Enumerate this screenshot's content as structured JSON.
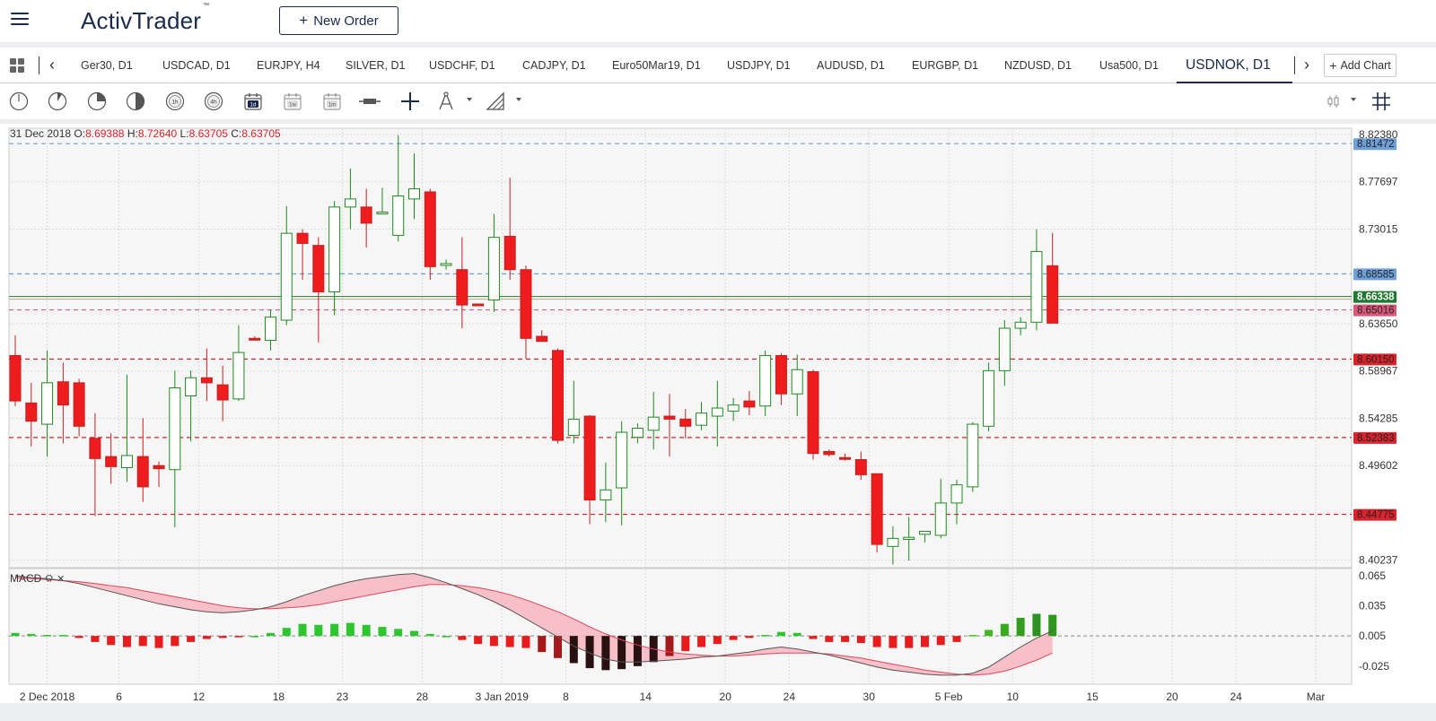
{
  "header": {
    "logo": "ActivTrader",
    "logo_tm": "™",
    "new_order_label": "New Order"
  },
  "tabs": [
    "Ger30, D1",
    "USDCAD, D1",
    "EURJPY, H4",
    "SILVER, D1",
    "USDCHF, D1",
    "CADJPY, D1",
    "Euro50Mar19, D1",
    "USDJPY, D1",
    "AUDUSD, D1",
    "EURGBP, D1",
    "NZDUSD, D1",
    "Usa500, D1",
    "USDNOK, D1"
  ],
  "active_tab": "USDNOK, D1",
  "add_chart_label": "Add Chart",
  "toolbar": {
    "tools": [
      "clock-1-icon",
      "clock-2-icon",
      "clock-3-icon",
      "clock-4-icon",
      "timeframe-1h-icon",
      "timeframe-4h-icon",
      "timeframe-1d-icon",
      "timeframe-1w-icon",
      "timeframe-1m-icon",
      "line-tool-icon",
      "crosshair-icon",
      "drawing-tool-icon",
      "shape-tool-icon",
      "chart-type-icon",
      "grid-icon"
    ],
    "tf_1h": "1h",
    "tf_4h": "4h",
    "tf_1d": "1d",
    "tf_1w": "1w",
    "tf_1m": "1m"
  },
  "ohlc": {
    "date": "31 Dec 2018",
    "o_label": "O:",
    "o": "8.69388",
    "h_label": "H:",
    "h": "8.72640",
    "l_label": "L:",
    "l": "8.63705",
    "c_label": "C:",
    "c": "8.63705"
  },
  "macd_label": "MACD",
  "chart_data": {
    "type": "candlestick",
    "symbol": "USDNOK",
    "timeframe": "D1",
    "price_axis_labels": [
      "8.82380",
      "8.77697",
      "8.73015",
      "8.63650",
      "8.58967",
      "8.54285",
      "8.49602",
      "8.40237"
    ],
    "ylim": [
      8.395,
      8.83
    ],
    "x_tick_labels": [
      {
        "label": "2 Dec 2018",
        "index": 2
      },
      {
        "label": "6",
        "index": 6.5
      },
      {
        "label": "12",
        "index": 11.5
      },
      {
        "label": "18",
        "index": 16.5
      },
      {
        "label": "23",
        "index": 20.5
      },
      {
        "label": "28",
        "index": 25.5
      },
      {
        "label": "3 Jan 2019",
        "index": 30.5
      },
      {
        "label": "8",
        "index": 34.5
      },
      {
        "label": "14",
        "index": 39.5
      },
      {
        "label": "20",
        "index": 44.5
      },
      {
        "label": "24",
        "index": 48.5
      },
      {
        "label": "30",
        "index": 53.5
      },
      {
        "label": "5 Feb",
        "index": 58.5
      },
      {
        "label": "10",
        "index": 62.5
      },
      {
        "label": "15",
        "index": 67.5
      },
      {
        "label": "20",
        "index": 72.5
      },
      {
        "label": "24",
        "index": 76.5
      },
      {
        "label": "Mar",
        "index": 81.5
      }
    ],
    "candles": [
      {
        "o": 8.605,
        "h": 8.625,
        "l": 8.555,
        "c": 8.56
      },
      {
        "o": 8.558,
        "h": 8.578,
        "l": 8.515,
        "c": 8.54
      },
      {
        "o": 8.537,
        "h": 8.61,
        "l": 8.505,
        "c": 8.578
      },
      {
        "o": 8.579,
        "h": 8.598,
        "l": 8.518,
        "c": 8.556
      },
      {
        "o": 8.578,
        "h": 8.582,
        "l": 8.525,
        "c": 8.535
      },
      {
        "o": 8.523,
        "h": 8.548,
        "l": 8.446,
        "c": 8.503
      },
      {
        "o": 8.505,
        "h": 8.528,
        "l": 8.478,
        "c": 8.495
      },
      {
        "o": 8.494,
        "h": 8.586,
        "l": 8.48,
        "c": 8.506
      },
      {
        "o": 8.505,
        "h": 8.543,
        "l": 8.46,
        "c": 8.475
      },
      {
        "o": 8.496,
        "h": 8.5,
        "l": 8.475,
        "c": 8.493
      },
      {
        "o": 8.492,
        "h": 8.59,
        "l": 8.435,
        "c": 8.573
      },
      {
        "o": 8.565,
        "h": 8.59,
        "l": 8.52,
        "c": 8.583
      },
      {
        "o": 8.583,
        "h": 8.612,
        "l": 8.56,
        "c": 8.578
      },
      {
        "o": 8.576,
        "h": 8.595,
        "l": 8.54,
        "c": 8.561
      },
      {
        "o": 8.562,
        "h": 8.635,
        "l": 8.56,
        "c": 8.608
      },
      {
        "o": 8.622,
        "h": 8.624,
        "l": 8.62,
        "c": 8.621
      },
      {
        "o": 8.62,
        "h": 8.65,
        "l": 8.61,
        "c": 8.643
      },
      {
        "o": 8.64,
        "h": 8.753,
        "l": 8.635,
        "c": 8.726
      },
      {
        "o": 8.726,
        "h": 8.73,
        "l": 8.68,
        "c": 8.716
      },
      {
        "o": 8.714,
        "h": 8.722,
        "l": 8.618,
        "c": 8.668
      },
      {
        "o": 8.668,
        "h": 8.758,
        "l": 8.645,
        "c": 8.752
      },
      {
        "o": 8.752,
        "h": 8.79,
        "l": 8.73,
        "c": 8.76
      },
      {
        "o": 8.752,
        "h": 8.77,
        "l": 8.712,
        "c": 8.736
      },
      {
        "o": 8.747,
        "h": 8.771,
        "l": 8.745,
        "c": 8.747
      },
      {
        "o": 8.724,
        "h": 8.823,
        "l": 8.718,
        "c": 8.763
      },
      {
        "o": 8.76,
        "h": 8.805,
        "l": 8.74,
        "c": 8.77
      },
      {
        "o": 8.767,
        "h": 8.77,
        "l": 8.68,
        "c": 8.693
      },
      {
        "o": 8.695,
        "h": 8.7,
        "l": 8.69,
        "c": 8.696
      },
      {
        "o": 8.69,
        "h": 8.722,
        "l": 8.632,
        "c": 8.655
      },
      {
        "o": 8.656,
        "h": 8.656,
        "l": 8.654,
        "c": 8.655
      },
      {
        "o": 8.66,
        "h": 8.745,
        "l": 8.648,
        "c": 8.722
      },
      {
        "o": 8.723,
        "h": 8.781,
        "l": 8.68,
        "c": 8.69
      },
      {
        "o": 8.69,
        "h": 8.694,
        "l": 8.602,
        "c": 8.622
      },
      {
        "o": 8.624,
        "h": 8.63,
        "l": 8.619,
        "c": 8.619
      },
      {
        "o": 8.61,
        "h": 8.612,
        "l": 8.518,
        "c": 8.521
      },
      {
        "o": 8.526,
        "h": 8.58,
        "l": 8.518,
        "c": 8.542
      },
      {
        "o": 8.545,
        "h": 8.546,
        "l": 8.438,
        "c": 8.462
      },
      {
        "o": 8.462,
        "h": 8.499,
        "l": 8.44,
        "c": 8.472
      },
      {
        "o": 8.474,
        "h": 8.54,
        "l": 8.437,
        "c": 8.529
      },
      {
        "o": 8.524,
        "h": 8.538,
        "l": 8.518,
        "c": 8.533
      },
      {
        "o": 8.531,
        "h": 8.569,
        "l": 8.512,
        "c": 8.544
      },
      {
        "o": 8.545,
        "h": 8.567,
        "l": 8.505,
        "c": 8.542
      },
      {
        "o": 8.542,
        "h": 8.552,
        "l": 8.523,
        "c": 8.535
      },
      {
        "o": 8.536,
        "h": 8.559,
        "l": 8.531,
        "c": 8.548
      },
      {
        "o": 8.545,
        "h": 8.58,
        "l": 8.515,
        "c": 8.553
      },
      {
        "o": 8.55,
        "h": 8.563,
        "l": 8.54,
        "c": 8.556
      },
      {
        "o": 8.56,
        "h": 8.57,
        "l": 8.546,
        "c": 8.554
      },
      {
        "o": 8.555,
        "h": 8.61,
        "l": 8.545,
        "c": 8.605
      },
      {
        "o": 8.605,
        "h": 8.607,
        "l": 8.556,
        "c": 8.567
      },
      {
        "o": 8.567,
        "h": 8.606,
        "l": 8.545,
        "c": 8.591
      },
      {
        "o": 8.589,
        "h": 8.591,
        "l": 8.502,
        "c": 8.508
      },
      {
        "o": 8.51,
        "h": 8.512,
        "l": 8.505,
        "c": 8.507
      },
      {
        "o": 8.504,
        "h": 8.508,
        "l": 8.501,
        "c": 8.503
      },
      {
        "o": 8.502,
        "h": 8.51,
        "l": 8.482,
        "c": 8.487
      },
      {
        "o": 8.488,
        "h": 8.488,
        "l": 8.41,
        "c": 8.418
      },
      {
        "o": 8.416,
        "h": 8.436,
        "l": 8.398,
        "c": 8.424
      },
      {
        "o": 8.423,
        "h": 8.445,
        "l": 8.402,
        "c": 8.425
      },
      {
        "o": 8.428,
        "h": 8.43,
        "l": 8.42,
        "c": 8.431
      },
      {
        "o": 8.427,
        "h": 8.483,
        "l": 8.424,
        "c": 8.459
      },
      {
        "o": 8.459,
        "h": 8.482,
        "l": 8.438,
        "c": 8.477
      },
      {
        "o": 8.475,
        "h": 8.539,
        "l": 8.47,
        "c": 8.537
      },
      {
        "o": 8.535,
        "h": 8.598,
        "l": 8.53,
        "c": 8.59
      },
      {
        "o": 8.59,
        "h": 8.64,
        "l": 8.575,
        "c": 8.632
      },
      {
        "o": 8.632,
        "h": 8.643,
        "l": 8.625,
        "c": 8.638
      },
      {
        "o": 8.638,
        "h": 8.73,
        "l": 8.63,
        "c": 8.708
      },
      {
        "o": 8.69388,
        "h": 8.7264,
        "l": 8.63705,
        "c": 8.63705
      }
    ],
    "horizontal_lines": [
      {
        "price": 8.81472,
        "label": "8.81472",
        "color": "#6f9fd8",
        "style": "dashed"
      },
      {
        "price": 8.68585,
        "label": "8.68585",
        "color": "#6f9fd8",
        "style": "dashed"
      },
      {
        "price": 8.66338,
        "label": "8.66338",
        "color": "#1f7a2f",
        "style": "solid"
      },
      {
        "price": 8.65016,
        "label": "8.65016",
        "color": "#d8587a",
        "style": "dashed"
      },
      {
        "price": 8.6015,
        "label": "8.60150",
        "color": "#d9232d",
        "style": "dashed"
      },
      {
        "price": 8.52383,
        "label": "8.52383",
        "color": "#d9232d",
        "style": "dashed"
      },
      {
        "price": 8.44775,
        "label": "8.44775",
        "color": "#d9232d",
        "style": "dashed"
      }
    ],
    "macd": {
      "axis_labels": [
        "0.065",
        "0.035",
        "0.005",
        "-0.025"
      ],
      "ylim": [
        -0.043,
        0.072
      ],
      "histogram": [
        0.003,
        0.002,
        0.001,
        0.001,
        -0.002,
        -0.006,
        -0.009,
        -0.011,
        -0.01,
        -0.012,
        -0.01,
        -0.006,
        -0.003,
        -0.002,
        -0.001,
        0.0,
        0.003,
        0.008,
        0.012,
        0.011,
        0.012,
        0.013,
        0.011,
        0.009,
        0.007,
        0.005,
        0.002,
        0.0,
        -0.004,
        -0.008,
        -0.01,
        -0.011,
        -0.012,
        -0.016,
        -0.022,
        -0.027,
        -0.032,
        -0.034,
        -0.033,
        -0.03,
        -0.026,
        -0.02,
        -0.015,
        -0.011,
        -0.008,
        -0.004,
        -0.002,
        0.001,
        0.004,
        0.003,
        -0.003,
        -0.006,
        -0.006,
        -0.007,
        -0.011,
        -0.012,
        -0.012,
        -0.011,
        -0.009,
        -0.006,
        0.001,
        0.006,
        0.012,
        0.018,
        0.022,
        0.021
      ],
      "macd_line": [
        0.065,
        0.063,
        0.062,
        0.06,
        0.057,
        0.053,
        0.049,
        0.045,
        0.041,
        0.037,
        0.034,
        0.031,
        0.029,
        0.028,
        0.029,
        0.031,
        0.034,
        0.039,
        0.045,
        0.05,
        0.055,
        0.059,
        0.062,
        0.064,
        0.066,
        0.067,
        0.063,
        0.058,
        0.052,
        0.046,
        0.039,
        0.031,
        0.022,
        0.013,
        0.004,
        -0.005,
        -0.012,
        -0.018,
        -0.021,
        -0.021,
        -0.02,
        -0.019,
        -0.018,
        -0.016,
        -0.015,
        -0.013,
        -0.011,
        -0.008,
        -0.006,
        -0.008,
        -0.011,
        -0.014,
        -0.018,
        -0.022,
        -0.026,
        -0.029,
        -0.031,
        -0.033,
        -0.034,
        -0.034,
        -0.032,
        -0.026,
        -0.016,
        -0.006,
        0.003,
        0.01
      ],
      "signal_line": [
        0.063,
        0.062,
        0.061,
        0.06,
        0.059,
        0.057,
        0.055,
        0.053,
        0.05,
        0.047,
        0.044,
        0.041,
        0.038,
        0.035,
        0.033,
        0.032,
        0.032,
        0.033,
        0.034,
        0.036,
        0.039,
        0.042,
        0.045,
        0.048,
        0.051,
        0.054,
        0.056,
        0.056,
        0.055,
        0.053,
        0.05,
        0.046,
        0.041,
        0.035,
        0.029,
        0.022,
        0.014,
        0.007,
        0.001,
        -0.004,
        -0.008,
        -0.011,
        -0.013,
        -0.014,
        -0.015,
        -0.015,
        -0.014,
        -0.013,
        -0.012,
        -0.012,
        -0.012,
        -0.013,
        -0.015,
        -0.017,
        -0.02,
        -0.023,
        -0.026,
        -0.029,
        -0.031,
        -0.033,
        -0.034,
        -0.033,
        -0.03,
        -0.025,
        -0.019,
        -0.012
      ],
      "zero_line": 0.005
    },
    "grid": true
  }
}
